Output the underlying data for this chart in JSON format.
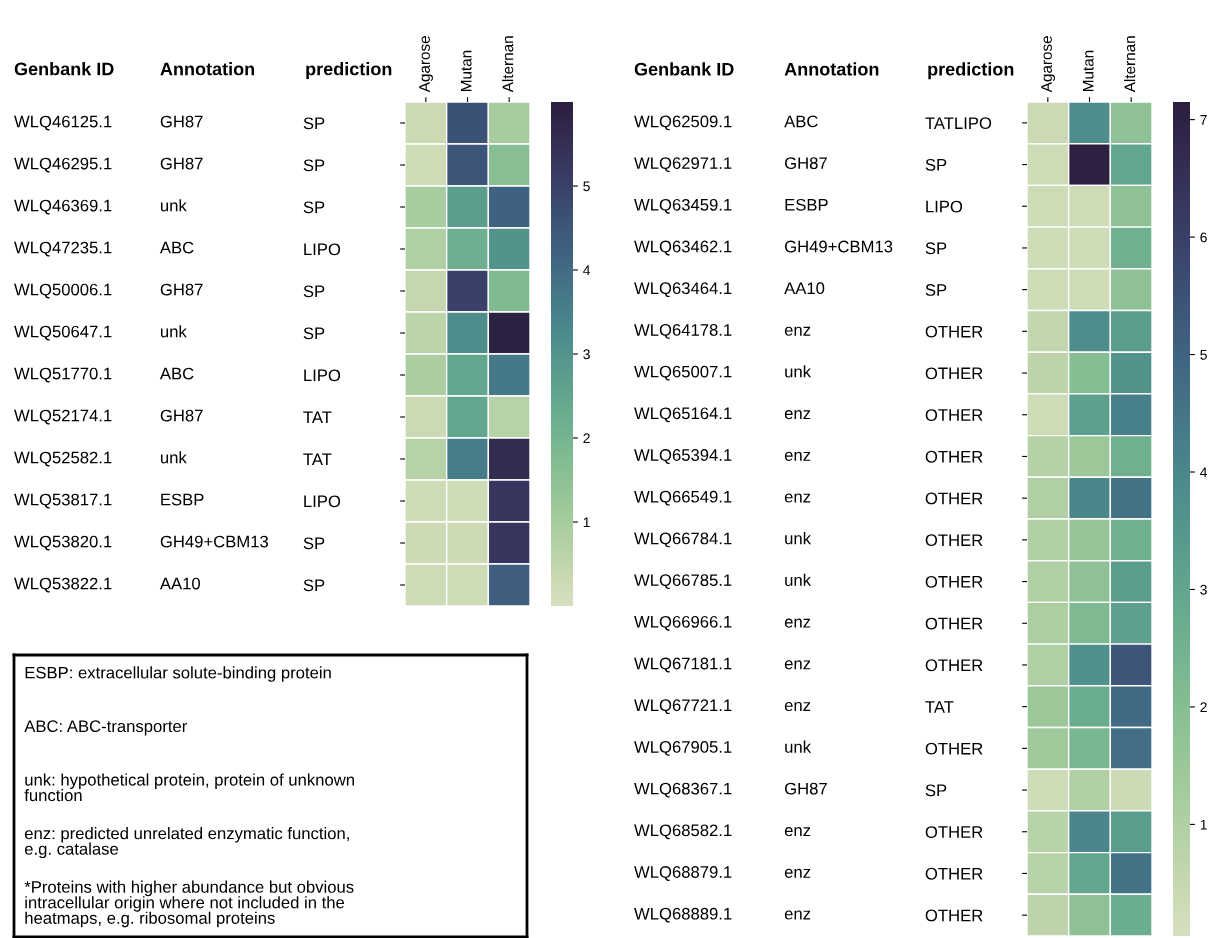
{
  "chart_data": [
    {
      "type": "other",
      "categories": [
        "Genbank ID",
        "Annotation"
      ],
      "cell_labels": [
        [
          "WLQ46125.1",
          "GH87"
        ],
        [
          "WLQ46295.1",
          "GH87"
        ],
        [
          "WLQ46369.1",
          "unk"
        ],
        [
          "WLQ47235.1",
          "ABC"
        ],
        [
          "WLQ50006.1",
          "GH87"
        ],
        [
          "WLQ50647.1",
          "unk"
        ],
        [
          "WLQ51770.1",
          "ABC"
        ],
        [
          "WLQ52174.1",
          "GH87"
        ],
        [
          "WLQ52582.1",
          "unk"
        ],
        [
          "WLQ53817.1",
          "ESBP"
        ],
        [
          "WLQ53820.1",
          "GH49+CBM13"
        ],
        [
          "WLQ53822.1",
          "AA10"
        ]
      ]
    },
    {
      "type": "heatmap",
      "ylabel": "prediction",
      "categories": [
        "Agarose",
        "Mutan",
        "Alternan"
      ],
      "y_categories": [
        "SP",
        "SP",
        "SP",
        "LIPO",
        "SP",
        "SP",
        "LIPO",
        "TAT",
        "TAT",
        "LIPO",
        "SP",
        "SP"
      ],
      "cells": [
        [
          0.3,
          4.6,
          1.0
        ],
        [
          0.2,
          4.5,
          1.6
        ],
        [
          1.0,
          2.7,
          4.2
        ],
        [
          0.8,
          2.2,
          3.0
        ],
        [
          0.4,
          5.0,
          1.8
        ],
        [
          0.6,
          3.2,
          5.9
        ],
        [
          0.9,
          2.5,
          3.7
        ],
        [
          0.3,
          2.5,
          0.7
        ],
        [
          0.7,
          3.6,
          5.6
        ],
        [
          0.2,
          0.2,
          5.3
        ],
        [
          0.3,
          0.3,
          5.3
        ],
        [
          0.2,
          0.2,
          4.3
        ]
      ],
      "clim": [
        0.0,
        6.0
      ],
      "cticks": [
        1,
        2,
        3,
        4,
        5
      ]
    },
    {
      "type": "other",
      "categories": [
        "Genbank ID",
        "Annotation"
      ],
      "cell_labels": [
        [
          "WLQ62509.1",
          "ABC"
        ],
        [
          "WLQ62971.1",
          "GH87"
        ],
        [
          "WLQ63459.1",
          "ESBP"
        ],
        [
          "WLQ63462.1",
          "GH49+CBM13"
        ],
        [
          "WLQ63464.1",
          "AA10"
        ],
        [
          "WLQ64178.1",
          "enz"
        ],
        [
          "WLQ65007.1",
          "unk"
        ],
        [
          "WLQ65164.1",
          "enz"
        ],
        [
          "WLQ65394.1",
          "enz"
        ],
        [
          "WLQ66549.1",
          "enz"
        ],
        [
          "WLQ66784.1",
          "unk"
        ],
        [
          "WLQ66785.1",
          "unk"
        ],
        [
          "WLQ66966.1",
          "enz"
        ],
        [
          "WLQ67181.1",
          "enz"
        ],
        [
          "WLQ67721.1",
          "enz"
        ],
        [
          "WLQ67905.1",
          "unk"
        ],
        [
          "WLQ68367.1",
          "GH87"
        ],
        [
          "WLQ68582.1",
          "enz"
        ],
        [
          "WLQ68879.1",
          "enz"
        ],
        [
          "WLQ68889.1",
          "enz"
        ]
      ]
    },
    {
      "type": "heatmap",
      "ylabel": "prediction",
      "categories": [
        "Agarose",
        "Mutan",
        "Alternan"
      ],
      "y_categories": [
        "TATLIPO",
        "SP",
        "LIPO",
        "SP",
        "SP",
        "OTHER",
        "OTHER",
        "OTHER",
        "OTHER",
        "OTHER",
        "OTHER",
        "OTHER",
        "OTHER",
        "OTHER",
        "TAT",
        "OTHER",
        "SP",
        "OTHER",
        "OTHER",
        "OTHER"
      ],
      "cells": [
        [
          0.4,
          3.8,
          1.8
        ],
        [
          0.3,
          7.1,
          3.0
        ],
        [
          0.3,
          0.3,
          1.8
        ],
        [
          0.3,
          0.3,
          2.6
        ],
        [
          0.3,
          0.3,
          1.8
        ],
        [
          0.6,
          3.8,
          3.3
        ],
        [
          0.7,
          2.0,
          3.6
        ],
        [
          0.3,
          3.2,
          4.2
        ],
        [
          0.9,
          1.5,
          2.6
        ],
        [
          1.0,
          4.0,
          4.6
        ],
        [
          1.0,
          1.6,
          2.6
        ],
        [
          1.0,
          1.8,
          3.3
        ],
        [
          1.1,
          2.2,
          3.2
        ],
        [
          1.0,
          3.7,
          5.4
        ],
        [
          1.5,
          2.7,
          4.8
        ],
        [
          1.4,
          2.3,
          4.7
        ],
        [
          0.3,
          1.0,
          0.4
        ],
        [
          0.8,
          4.0,
          3.3
        ],
        [
          0.8,
          3.0,
          4.6
        ],
        [
          0.7,
          1.8,
          2.7
        ]
      ],
      "clim": [
        0.05,
        7.15
      ],
      "cticks": [
        1,
        2,
        3,
        4,
        5,
        6,
        7
      ]
    },
    {
      "type": "other",
      "annotations": [
        "ESBP: extracellular solute-binding protein",
        "ABC: ABC-transporter",
        "unk: hypothetical protein, protein of unknown\nfunction",
        "enz: predicted unrelated enzymatic function,\ne.g. catalase",
        "*Proteins with higher abundance but obvious\nintracellular origin where not included in the\nheatmaps, e.g. ribosomal proteins"
      ]
    }
  ]
}
